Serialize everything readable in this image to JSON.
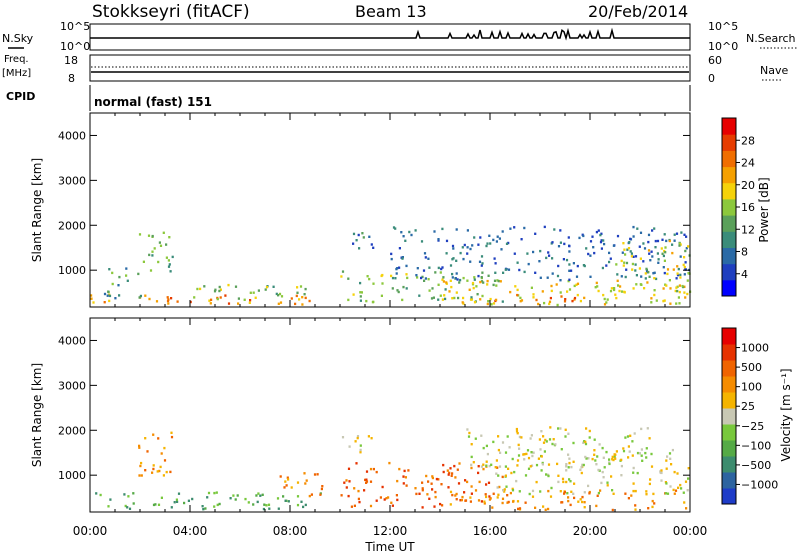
{
  "header": {
    "station": "Stokkseyri (fitACF)",
    "beam": "Beam 13",
    "date": "20/Feb/2014",
    "cpid_label": "CPID",
    "cpid_value": "normal (fast) 151"
  },
  "top_panels": {
    "nsky_label": "N.Sky",
    "nsky_ticks": [
      "10^5",
      "10^0"
    ],
    "nsky_right_ticks": [
      "10^5",
      "10^0"
    ],
    "nsearch_label": "N.Search",
    "freq_label_line1": "Freq.",
    "freq_label_line2": "[MHz]",
    "freq_ticks": [
      "18",
      "8"
    ],
    "nave_label": "Nave",
    "nave_ticks": [
      "60",
      "0"
    ]
  },
  "chart_data": [
    {
      "type": "heatmap",
      "panel": "power",
      "ylabel": "Slant Range [km]",
      "yticks": [
        "4000",
        "3000",
        "2000",
        "1000"
      ],
      "ylim": [
        180,
        4500
      ],
      "xlim": [
        "00:00",
        "24:00"
      ],
      "xticks": [
        "00:00",
        "04:00",
        "08:00",
        "12:00",
        "16:00",
        "20:00",
        "00:00"
      ],
      "colorbar": {
        "label": "Power [dB]",
        "ticks": [
          "28",
          "24",
          "20",
          "16",
          "12",
          "8",
          "4"
        ],
        "range": [
          0,
          30
        ],
        "colors": [
          "#0000ff",
          "#1f3fbf",
          "#2a6aa6",
          "#3a8c7a",
          "#5aa05a",
          "#8cc83c",
          "#f5d20a",
          "#f5a000",
          "#f06e00",
          "#e63c00",
          "#e60000"
        ]
      },
      "regions": [
        {
          "t0": 0.0,
          "t1": 9.3,
          "r0": 250,
          "r1": 480,
          "level": 22
        },
        {
          "t0": 4.0,
          "t1": 8.8,
          "r0": 300,
          "r1": 700,
          "level": 14
        },
        {
          "t0": 0.5,
          "t1": 2.0,
          "r0": 400,
          "r1": 1100,
          "level": 10
        },
        {
          "t0": 1.8,
          "t1": 3.3,
          "r0": 1000,
          "r1": 1900,
          "level": 12
        },
        {
          "t0": 10.0,
          "t1": 16.5,
          "r0": 300,
          "r1": 1000,
          "level": 14
        },
        {
          "t0": 14.0,
          "t1": 24.0,
          "r0": 250,
          "r1": 800,
          "level": 18
        },
        {
          "t0": 15.5,
          "t1": 20.0,
          "r0": 250,
          "r1": 480,
          "level": 24
        },
        {
          "t0": 12.0,
          "t1": 24.0,
          "r0": 800,
          "r1": 2000,
          "level": 6
        },
        {
          "t0": 21.0,
          "t1": 24.0,
          "r0": 500,
          "r1": 1700,
          "level": 16
        },
        {
          "t0": 10.0,
          "t1": 11.5,
          "r0": 1500,
          "r1": 1900,
          "level": 8
        }
      ]
    },
    {
      "type": "heatmap",
      "panel": "velocity",
      "ylabel": "Slant Range [km]",
      "yticks": [
        "4000",
        "3000",
        "2000",
        "1000"
      ],
      "ylim": [
        180,
        4500
      ],
      "xlim": [
        "00:00",
        "24:00"
      ],
      "xticks": [
        "00:00",
        "04:00",
        "08:00",
        "12:00",
        "16:00",
        "20:00",
        "00:00"
      ],
      "xlabel": "Time UT",
      "colorbar": {
        "label": "Velocity [m s⁻¹]",
        "ticks": [
          "1000",
          "500",
          "100",
          "25",
          "−25",
          "−100",
          "−500",
          "−1000"
        ],
        "colors": [
          "#1e3cc8",
          "#2d64a0",
          "#3c8c6e",
          "#55aa46",
          "#78c83c",
          "#c8c8b4",
          "#f5b400",
          "#f58c00",
          "#f06400",
          "#e63200",
          "#e60000"
        ]
      },
      "regions": [
        {
          "t0": 0.0,
          "t1": 9.3,
          "r0": 250,
          "r1": 650,
          "level": 3
        },
        {
          "t0": 1.8,
          "t1": 3.3,
          "r0": 1000,
          "r1": 2000,
          "level": 7
        },
        {
          "t0": 7.5,
          "t1": 9.3,
          "r0": 500,
          "r1": 1100,
          "level": 7
        },
        {
          "t0": 10.0,
          "t1": 16.5,
          "r0": 300,
          "r1": 1300,
          "level": 8
        },
        {
          "t0": 14.0,
          "t1": 24.0,
          "r0": 250,
          "r1": 700,
          "level": 7
        },
        {
          "t0": 15.0,
          "t1": 22.5,
          "r0": 1200,
          "r1": 2100,
          "level": 5
        },
        {
          "t0": 16.0,
          "t1": 24.0,
          "r0": 600,
          "r1": 1600,
          "level": 5
        },
        {
          "t0": 10.0,
          "t1": 11.5,
          "r0": 1500,
          "r1": 1900,
          "level": 5
        }
      ]
    }
  ]
}
